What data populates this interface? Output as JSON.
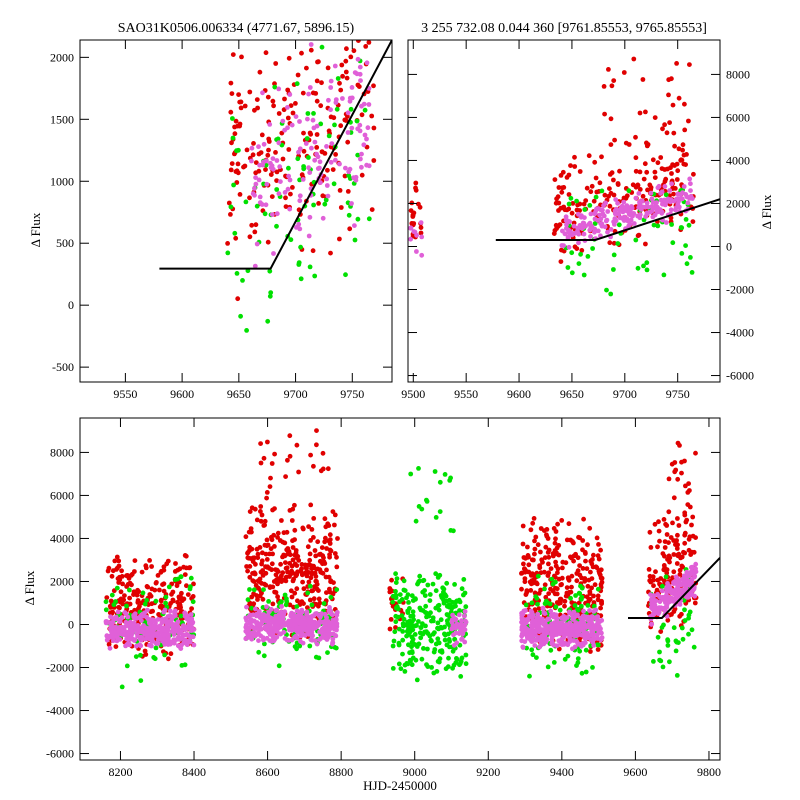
{
  "chart_data": [
    {
      "id": "top_left",
      "type": "scatter",
      "title": "SAO31K0506.006334 (4771.67, 5896.15)",
      "xlabel": "",
      "ylabel": "Δ Flux",
      "xlim": [
        9510,
        9785
      ],
      "ylim": [
        -620,
        2140
      ],
      "xticks": [
        9550,
        9600,
        9650,
        9700,
        9750
      ],
      "yticks": [
        -500,
        0,
        500,
        1000,
        1500,
        2000
      ],
      "yaxis_side": "left",
      "seed": 11,
      "clusters": [
        {
          "series": "red",
          "xmin": 9640,
          "xmax": 9770,
          "ymin": -50,
          "ymax": 2140,
          "n": 210,
          "trend": 4.0,
          "trendBase": 9640
        },
        {
          "series": "green",
          "xmin": 9640,
          "xmax": 9765,
          "ymin": -600,
          "ymax": 1900,
          "n": 85,
          "trend": 4.0,
          "trendBase": 9640
        },
        {
          "series": "magenta",
          "xmin": 9660,
          "xmax": 9765,
          "ymin": 150,
          "ymax": 1900,
          "n": 140,
          "trend": 5.0,
          "trendBase": 9660
        }
      ],
      "model_line": {
        "x": [
          9580,
          9678,
          9785
        ],
        "y": [
          295,
          295,
          2140
        ]
      }
    },
    {
      "id": "top_right",
      "type": "scatter",
      "title": "3 255 732.08 0.044 360 [9761.85553, 9765.85553]",
      "xlabel": "",
      "ylabel": "Δ Flux",
      "xlim": [
        9495,
        9790
      ],
      "ylim": [
        -6300,
        9600
      ],
      "xticks": [
        9500,
        9550,
        9600,
        9650,
        9700,
        9750
      ],
      "yticks": [
        -6000,
        -4000,
        -2000,
        0,
        2000,
        4000,
        6000,
        8000
      ],
      "yaxis_side": "right",
      "seed": 23,
      "clusters": [
        {
          "series": "red",
          "xmin": 9497,
          "xmax": 9508,
          "ymin": -300,
          "ymax": 3500,
          "n": 20,
          "trend": 0,
          "trendBase": 9497
        },
        {
          "series": "magenta",
          "xmin": 9497,
          "xmax": 9508,
          "ymin": -500,
          "ymax": 1500,
          "n": 10,
          "trend": 0,
          "trendBase": 9497
        },
        {
          "series": "red",
          "xmin": 9632,
          "xmax": 9765,
          "ymin": -1200,
          "ymax": 4500,
          "n": 220,
          "trend": 12,
          "trendBase": 9632
        },
        {
          "series": "red",
          "xmin": 9680,
          "xmax": 9765,
          "ymin": 4500,
          "ymax": 9200,
          "n": 26,
          "trend": 0,
          "trendBase": 9680
        },
        {
          "series": "green",
          "xmin": 9640,
          "xmax": 9765,
          "ymin": -3000,
          "ymax": 3000,
          "n": 60,
          "trend": 8,
          "trendBase": 9640
        },
        {
          "series": "magenta",
          "xmin": 9640,
          "xmax": 9765,
          "ymin": -300,
          "ymax": 1600,
          "n": 210,
          "trend": 14,
          "trendBase": 9640
        }
      ],
      "model_line": {
        "x": [
          9578,
          9672,
          9790
        ],
        "y": [
          300,
          300,
          2200
        ]
      }
    },
    {
      "id": "bottom",
      "type": "scatter",
      "title": "",
      "xlabel": "HJD-2450000",
      "ylabel": "Δ Flux",
      "xlim": [
        8090,
        9830
      ],
      "ylim": [
        -6300,
        9600
      ],
      "xticks": [
        8200,
        8400,
        8600,
        8800,
        9000,
        9200,
        9400,
        9600,
        9800
      ],
      "yticks": [
        -6000,
        -4000,
        -2000,
        0,
        2000,
        4000,
        6000,
        8000
      ],
      "yaxis_side": "left",
      "seed": 37,
      "clusters": [
        {
          "series": "red",
          "xmin": 8160,
          "xmax": 8400,
          "ymin": -1800,
          "ymax": 3500,
          "n": 260,
          "trend": 0,
          "trendBase": 8160
        },
        {
          "series": "green",
          "xmin": 8160,
          "xmax": 8400,
          "ymin": -3000,
          "ymax": 3000,
          "n": 80,
          "trend": 0,
          "trendBase": 8160
        },
        {
          "series": "magenta",
          "xmin": 8160,
          "xmax": 8400,
          "ymin": -1200,
          "ymax": 800,
          "n": 360,
          "trend": 0,
          "trendBase": 8160
        },
        {
          "series": "red",
          "xmin": 8540,
          "xmax": 8790,
          "ymin": -800,
          "ymax": 5800,
          "n": 340,
          "trend": 0,
          "trendBase": 8540
        },
        {
          "series": "red",
          "xmin": 8580,
          "xmax": 8790,
          "ymin": 5800,
          "ymax": 9500,
          "n": 24,
          "trend": 0,
          "trendBase": 8580
        },
        {
          "series": "green",
          "xmin": 8540,
          "xmax": 8790,
          "ymin": -2000,
          "ymax": 2000,
          "n": 110,
          "trend": 0,
          "trendBase": 8540
        },
        {
          "series": "magenta",
          "xmin": 8540,
          "xmax": 8790,
          "ymin": -1000,
          "ymax": 900,
          "n": 380,
          "trend": 0,
          "trendBase": 8540
        },
        {
          "series": "red",
          "xmin": 8930,
          "xmax": 8970,
          "ymin": -600,
          "ymax": 2600,
          "n": 24,
          "trend": 0,
          "trendBase": 8930
        },
        {
          "series": "green",
          "xmin": 8940,
          "xmax": 9140,
          "ymin": -2600,
          "ymax": 2600,
          "n": 260,
          "trend": 0,
          "trendBase": 8940
        },
        {
          "series": "green",
          "xmin": 8980,
          "xmax": 9120,
          "ymin": 2600,
          "ymax": 8500,
          "n": 16,
          "trend": 0,
          "trendBase": 8980
        },
        {
          "series": "magenta",
          "xmin": 9100,
          "xmax": 9140,
          "ymin": -1000,
          "ymax": 700,
          "n": 40,
          "trend": 0,
          "trendBase": 9100
        },
        {
          "series": "red",
          "xmin": 9290,
          "xmax": 9510,
          "ymin": -1500,
          "ymax": 5200,
          "n": 320,
          "trend": 0,
          "trendBase": 9290
        },
        {
          "series": "green",
          "xmin": 9300,
          "xmax": 9500,
          "ymin": -3000,
          "ymax": 2500,
          "n": 110,
          "trend": 0,
          "trendBase": 9300
        },
        {
          "series": "magenta",
          "xmin": 9290,
          "xmax": 9510,
          "ymin": -1200,
          "ymax": 800,
          "n": 380,
          "trend": 0,
          "trendBase": 9290
        },
        {
          "series": "red",
          "xmin": 9635,
          "xmax": 9765,
          "ymin": -1000,
          "ymax": 5000,
          "n": 150,
          "trend": 10,
          "trendBase": 9635
        },
        {
          "series": "red",
          "xmin": 9690,
          "xmax": 9765,
          "ymin": 5000,
          "ymax": 9300,
          "n": 20,
          "trend": 0,
          "trendBase": 9690
        },
        {
          "series": "green",
          "xmin": 9640,
          "xmax": 9765,
          "ymin": -3200,
          "ymax": 2500,
          "n": 40,
          "trend": 8,
          "trendBase": 9640
        },
        {
          "series": "magenta",
          "xmin": 9640,
          "xmax": 9765,
          "ymin": -300,
          "ymax": 1500,
          "n": 160,
          "trend": 12,
          "trendBase": 9640
        }
      ],
      "model_line": {
        "x": [
          9580,
          9672,
          9830
        ],
        "y": [
          300,
          300,
          3100
        ]
      }
    }
  ],
  "series_colors": {
    "red": "#e00000",
    "green": "#00e000",
    "magenta": "#e060d8"
  }
}
